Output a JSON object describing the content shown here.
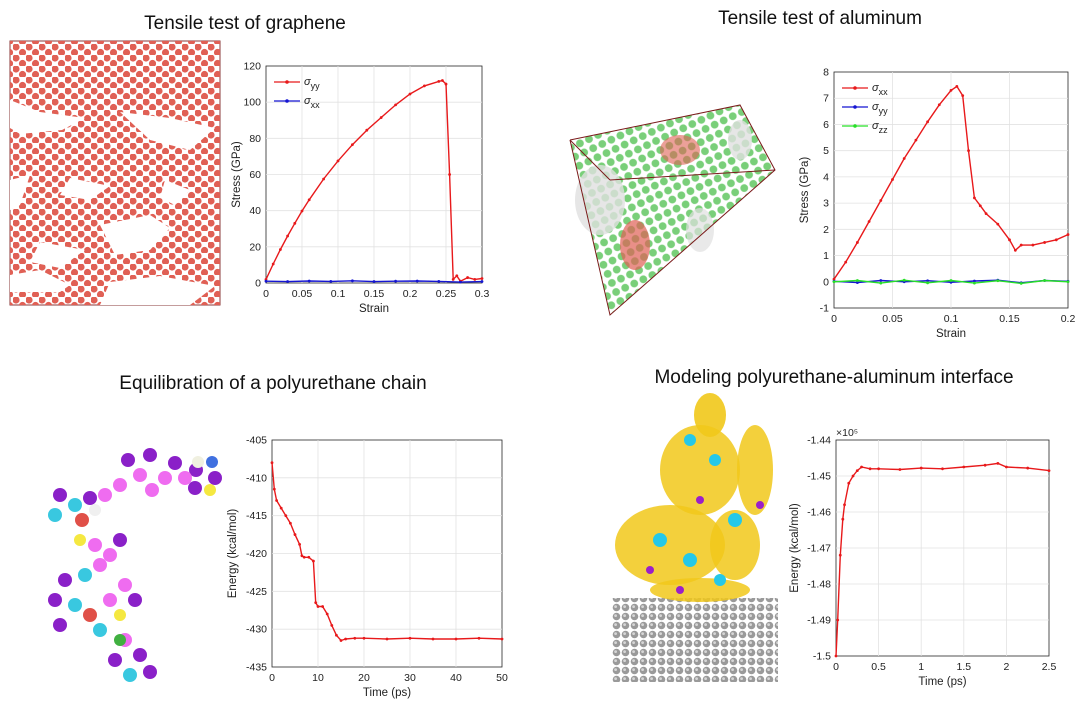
{
  "titles": {
    "graphene": "Tensile test of graphene",
    "aluminum": "Tensile test of aluminum",
    "polyurethane": "Equilibration of a polyurethane chain",
    "interface": "Modeling polyurethane-aluminum interface"
  },
  "chart_data": [
    {
      "id": "graphene",
      "type": "line",
      "title": "Tensile test of graphene",
      "xlabel": "Strain",
      "ylabel": "Stress (GPa)",
      "xlim": [
        0,
        0.3
      ],
      "ylim": [
        0,
        120
      ],
      "xticks": [
        "0",
        "0.05",
        "0.1",
        "0.15",
        "0.2",
        "0.25",
        "0.3"
      ],
      "yticks": [
        "0",
        "20",
        "40",
        "60",
        "80",
        "100",
        "120"
      ],
      "grid": true,
      "legend_position": "top-left",
      "series": [
        {
          "name": "σyy",
          "symbol": "σ",
          "sub": "yy",
          "color": "#e8191b",
          "x": [
            0,
            0.01,
            0.02,
            0.03,
            0.04,
            0.05,
            0.06,
            0.08,
            0.1,
            0.12,
            0.14,
            0.16,
            0.18,
            0.2,
            0.22,
            0.24,
            0.245,
            0.25,
            0.255,
            0.26,
            0.265,
            0.27,
            0.28,
            0.29,
            0.3
          ],
          "y": [
            2,
            10.5,
            18.5,
            26,
            33,
            39.8,
            46,
            57.5,
            67.5,
            76.5,
            84.5,
            91.5,
            98.5,
            104.5,
            109,
            111.5,
            112,
            110,
            60,
            2,
            4,
            1,
            3,
            2,
            2.5
          ]
        },
        {
          "name": "σxx",
          "symbol": "σ",
          "sub": "xx",
          "color": "#1515d2",
          "x": [
            0,
            0.03,
            0.06,
            0.09,
            0.12,
            0.15,
            0.18,
            0.21,
            0.24,
            0.27,
            0.3
          ],
          "y": [
            1,
            0.8,
            1.1,
            0.9,
            1.2,
            0.8,
            1,
            1.1,
            0.9,
            0.5,
            0.8
          ]
        }
      ]
    },
    {
      "id": "aluminum",
      "type": "line",
      "title": "Tensile test of aluminum",
      "xlabel": "Strain",
      "ylabel": "Stress (GPa)",
      "xlim": [
        0,
        0.2
      ],
      "ylim": [
        -1,
        8
      ],
      "xticks": [
        "0",
        "0.05",
        "0.1",
        "0.15",
        "0.2"
      ],
      "yticks": [
        "-1",
        "0",
        "1",
        "2",
        "3",
        "4",
        "5",
        "6",
        "7",
        "8"
      ],
      "grid": true,
      "legend_position": "top-left",
      "series": [
        {
          "name": "σxx",
          "symbol": "σ",
          "sub": "xx",
          "color": "#e8191b",
          "x": [
            0,
            0.01,
            0.02,
            0.03,
            0.04,
            0.05,
            0.06,
            0.07,
            0.08,
            0.09,
            0.1,
            0.105,
            0.11,
            0.115,
            0.12,
            0.125,
            0.13,
            0.14,
            0.15,
            0.155,
            0.16,
            0.17,
            0.18,
            0.19,
            0.2
          ],
          "y": [
            0.1,
            0.75,
            1.5,
            2.3,
            3.1,
            3.9,
            4.7,
            5.4,
            6.1,
            6.75,
            7.3,
            7.45,
            7.1,
            5.0,
            3.2,
            2.9,
            2.6,
            2.2,
            1.6,
            1.2,
            1.4,
            1.4,
            1.5,
            1.6,
            1.8
          ]
        },
        {
          "name": "σyy",
          "symbol": "σ",
          "sub": "yy",
          "color": "#1515d2",
          "x": [
            0,
            0.02,
            0.04,
            0.06,
            0.08,
            0.1,
            0.12,
            0.14,
            0.16,
            0.18,
            0.2
          ],
          "y": [
            0.02,
            -0.03,
            0.05,
            0.0,
            0.04,
            -0.02,
            0.03,
            0.06,
            -0.04,
            0.05,
            0.02
          ]
        },
        {
          "name": "σzz",
          "symbol": "σ",
          "sub": "zz",
          "color": "#27e027",
          "x": [
            0,
            0.02,
            0.04,
            0.06,
            0.08,
            0.1,
            0.12,
            0.14,
            0.16,
            0.18,
            0.2
          ],
          "y": [
            0.0,
            0.05,
            -0.05,
            0.06,
            -0.04,
            0.05,
            -0.05,
            0.04,
            -0.06,
            0.05,
            0.0
          ]
        }
      ]
    },
    {
      "id": "polyurethane",
      "type": "line",
      "title": "Equilibration of a polyurethane chain",
      "xlabel": "Time (ps)",
      "ylabel": "Energy (kcal/mol)",
      "xlim": [
        0,
        50
      ],
      "ylim": [
        -435,
        -405
      ],
      "xticks": [
        "0",
        "10",
        "20",
        "30",
        "40",
        "50"
      ],
      "yticks": [
        "-435",
        "-430",
        "-425",
        "-420",
        "-415",
        "-410",
        "-405"
      ],
      "grid": true,
      "series": [
        {
          "name": "Energy",
          "color": "#e8191b",
          "x": [
            0,
            0.5,
            1,
            2,
            3,
            4,
            5,
            6,
            6.5,
            7,
            8,
            9,
            9.5,
            10,
            11,
            12,
            13,
            14,
            15,
            16,
            18,
            20,
            25,
            30,
            35,
            40,
            45,
            50
          ],
          "y": [
            -408,
            -411.5,
            -413,
            -414,
            -415,
            -416,
            -417.5,
            -418.8,
            -420.3,
            -420.5,
            -420.5,
            -421,
            -426.5,
            -427,
            -427,
            -428,
            -429.5,
            -430.8,
            -431.5,
            -431.3,
            -431.2,
            -431.2,
            -431.3,
            -431.2,
            -431.3,
            -431.3,
            -431.2,
            -431.3
          ]
        }
      ]
    },
    {
      "id": "interface",
      "type": "line",
      "title": "Modeling polyurethane-aluminum interface",
      "xlabel": "Time (ps)",
      "ylabel": "Energy (kcal/mol)",
      "xlim": [
        0,
        2.5
      ],
      "ylim": [
        -1.5,
        -1.44
      ],
      "scale_label": "×10⁵",
      "xticks": [
        "0",
        "0.5",
        "1",
        "1.5",
        "2",
        "2.5"
      ],
      "yticks": [
        "-1.5",
        "-1.49",
        "-1.48",
        "-1.47",
        "-1.46",
        "-1.45",
        "-1.44"
      ],
      "grid": true,
      "series": [
        {
          "name": "Energy",
          "color": "#e8191b",
          "x": [
            0,
            0.02,
            0.05,
            0.08,
            0.1,
            0.15,
            0.2,
            0.25,
            0.3,
            0.4,
            0.5,
            0.75,
            1,
            1.25,
            1.5,
            1.75,
            1.9,
            2,
            2.25,
            2.5
          ],
          "y": [
            -1.5,
            -1.49,
            -1.472,
            -1.462,
            -1.458,
            -1.452,
            -1.45,
            -1.4485,
            -1.4475,
            -1.448,
            -1.448,
            -1.4482,
            -1.4478,
            -1.448,
            -1.4475,
            -1.447,
            -1.4465,
            -1.4475,
            -1.4478,
            -1.4485
          ]
        }
      ]
    }
  ]
}
